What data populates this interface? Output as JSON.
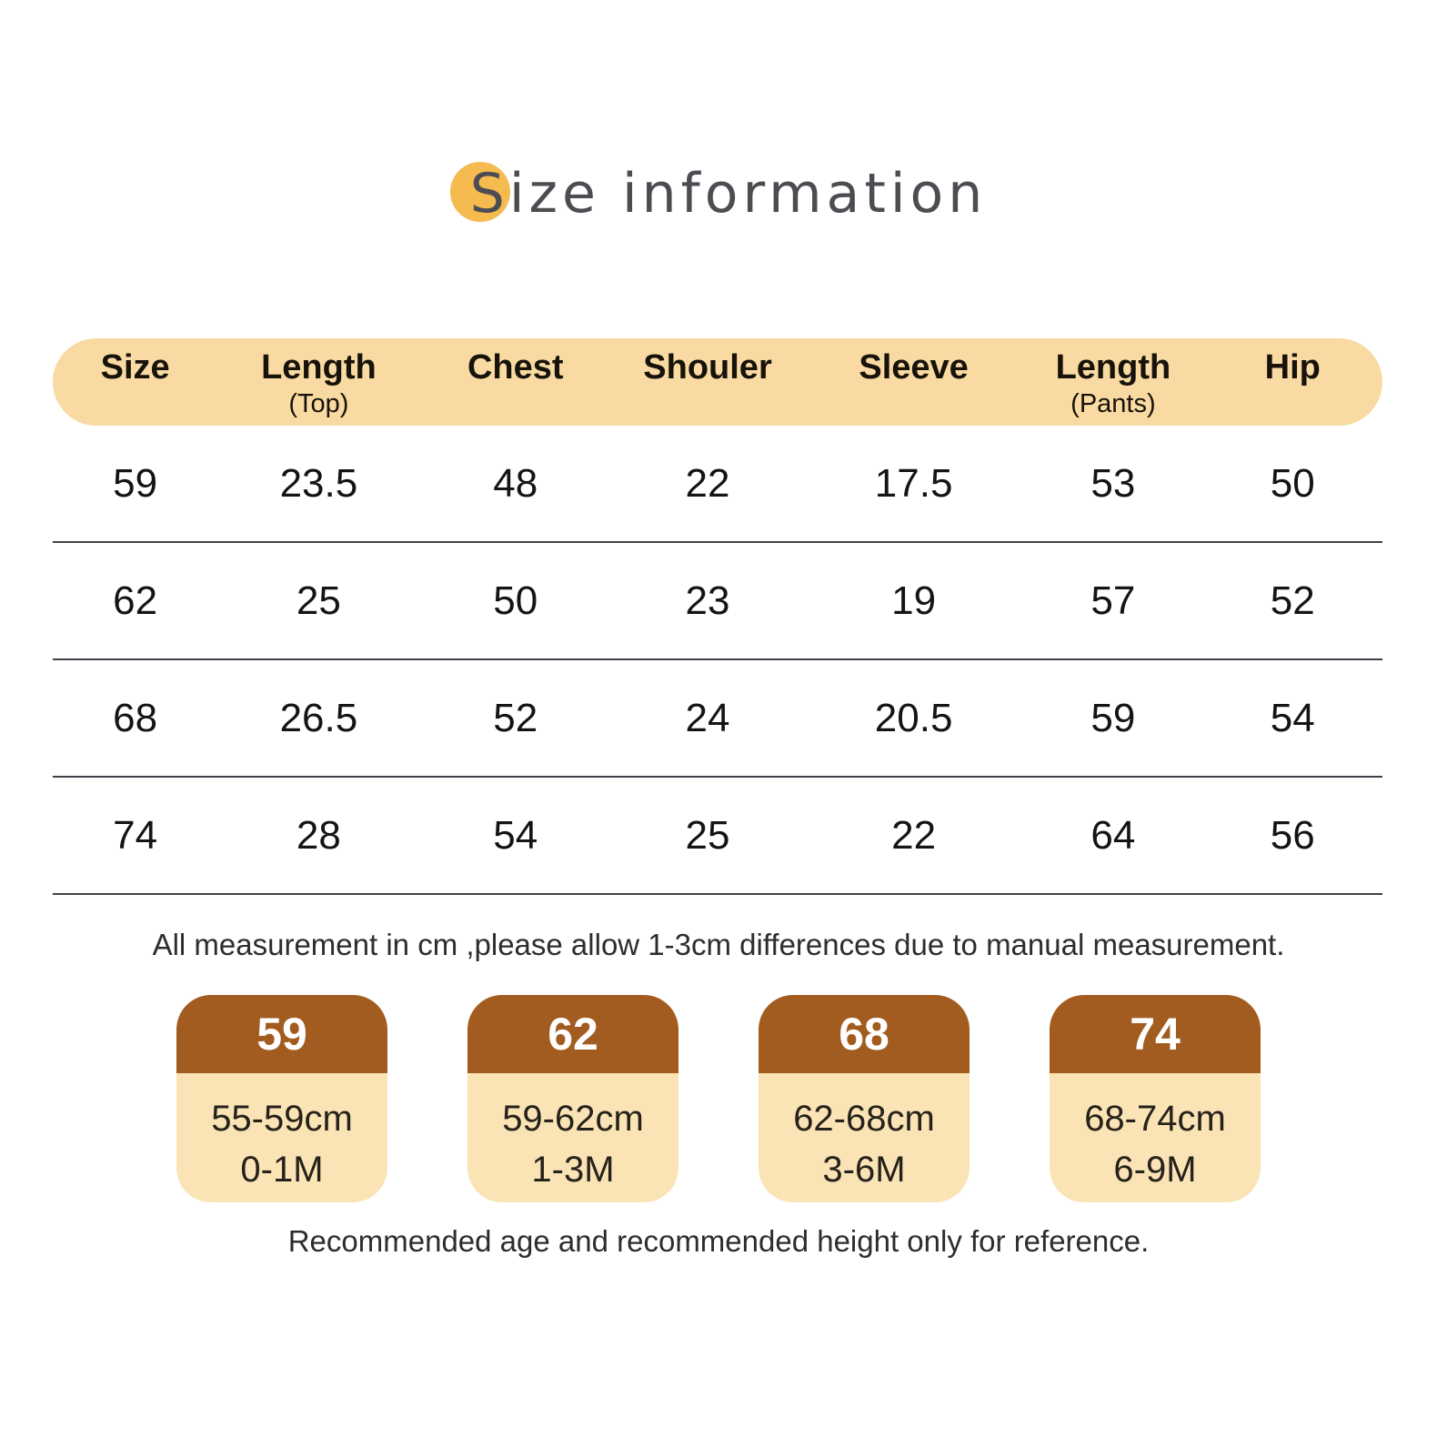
{
  "page": {
    "title": "Size information"
  },
  "table": {
    "headers": [
      {
        "label": "Size",
        "sub": ""
      },
      {
        "label": "Length",
        "sub": "(Top)"
      },
      {
        "label": "Chest",
        "sub": ""
      },
      {
        "label": "Shouler",
        "sub": ""
      },
      {
        "label": "Sleeve",
        "sub": ""
      },
      {
        "label": "Length",
        "sub": "(Pants)"
      },
      {
        "label": "Hip",
        "sub": ""
      }
    ],
    "rows": [
      [
        "59",
        "23.5",
        "48",
        "22",
        "17.5",
        "53",
        "50"
      ],
      [
        "62",
        "25",
        "50",
        "23",
        "19",
        "57",
        "52"
      ],
      [
        "68",
        "26.5",
        "52",
        "24",
        "20.5",
        "59",
        "54"
      ],
      [
        "74",
        "28",
        "54",
        "25",
        "22",
        "64",
        "56"
      ]
    ]
  },
  "note": "All measurement in cm ,please allow 1-3cm differences due to manual measurement.",
  "cards": [
    {
      "size": "59",
      "height": "55-59cm",
      "age": "0-1M"
    },
    {
      "size": "62",
      "height": "59-62cm",
      "age": "1-3M"
    },
    {
      "size": "68",
      "height": "62-68cm",
      "age": "3-6M"
    },
    {
      "size": "74",
      "height": "68-74cm",
      "age": "6-9M"
    }
  ],
  "footer": "Recommended age and recommended height only for reference.",
  "colors": {
    "accent_dot": "#F5BA50",
    "title_text": "#4C4D52",
    "table_header_bg": "#F8DAA2",
    "row_rule": "#3E4149",
    "card_header_bg": "#A25C1F",
    "card_body_bg": "#FAE4B6",
    "card_header_text": "#FFFFFF"
  },
  "chart_data": {
    "type": "table",
    "title": "Size information",
    "unit": "cm",
    "columns": [
      "Size",
      "Length (Top)",
      "Chest",
      "Shouler",
      "Sleeve",
      "Length (Pants)",
      "Hip"
    ],
    "rows": [
      [
        59,
        23.5,
        48,
        22,
        17.5,
        53,
        50
      ],
      [
        62,
        25,
        50,
        23,
        19,
        57,
        52
      ],
      [
        68,
        26.5,
        52,
        24,
        20.5,
        59,
        54
      ],
      [
        74,
        28,
        54,
        25,
        22,
        64,
        56
      ]
    ],
    "size_recommendations": [
      {
        "size": 59,
        "height_range": "55-59cm",
        "age_range": "0-1M"
      },
      {
        "size": 62,
        "height_range": "59-62cm",
        "age_range": "1-3M"
      },
      {
        "size": 68,
        "height_range": "62-68cm",
        "age_range": "3-6M"
      },
      {
        "size": 74,
        "height_range": "68-74cm",
        "age_range": "6-9M"
      }
    ],
    "notes": [
      "All measurement in cm ,please allow 1-3cm differences due to manual measurement.",
      "Recommended age and recommended height only for reference."
    ]
  }
}
